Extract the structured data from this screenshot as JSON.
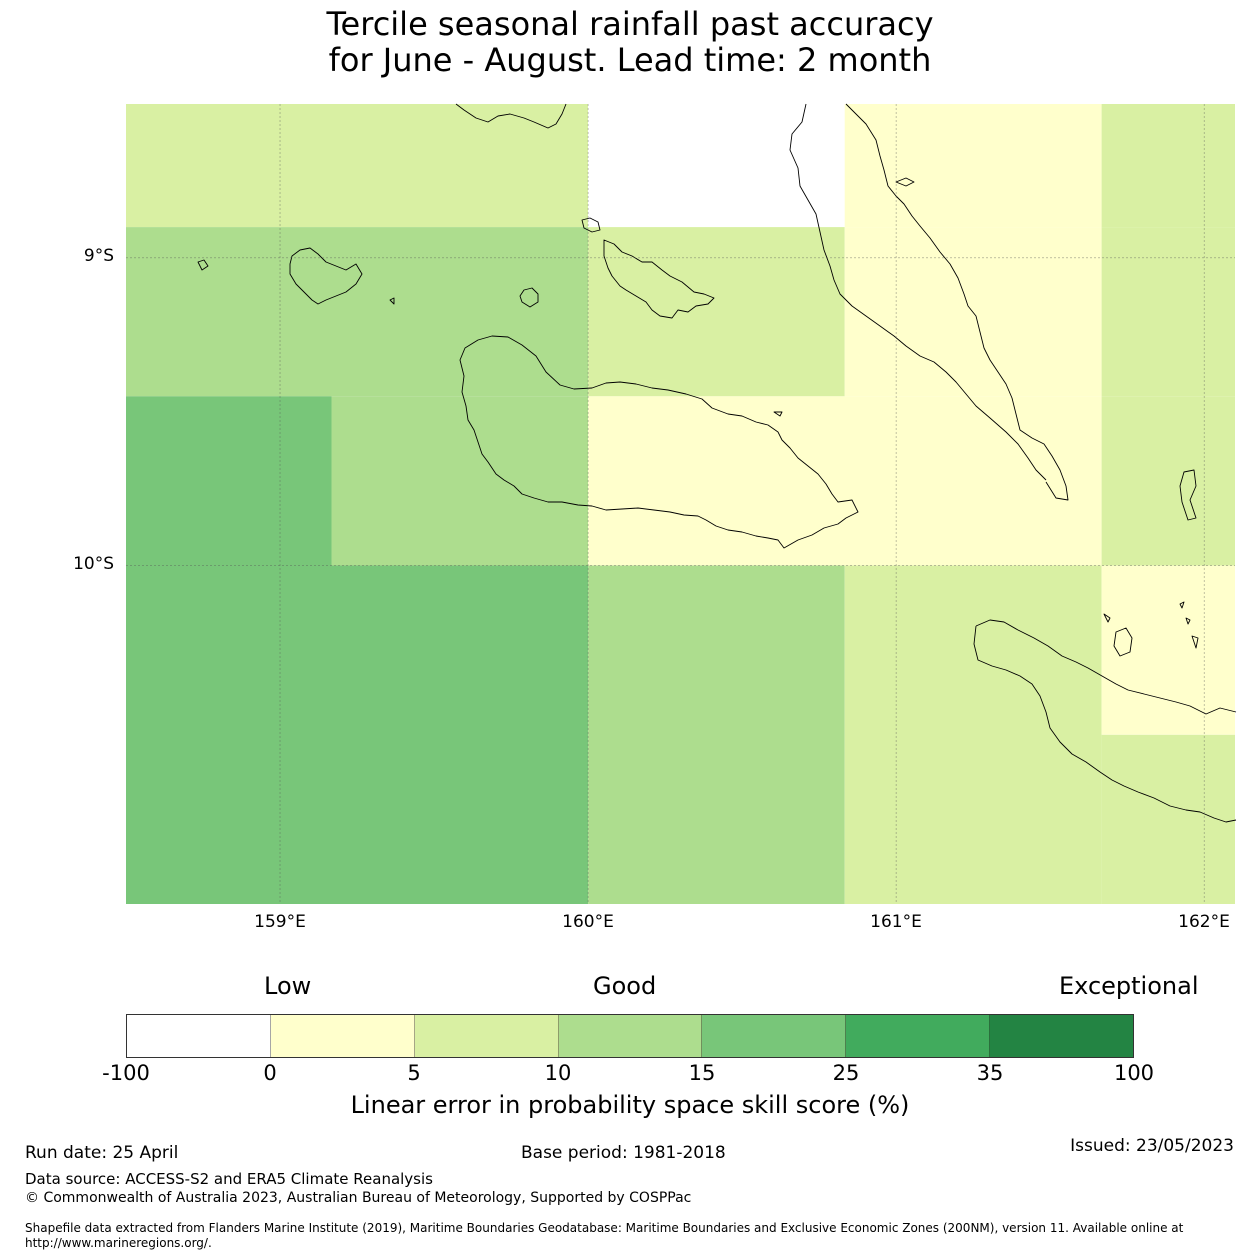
{
  "title_line1": "Tercile seasonal rainfall past accuracy",
  "title_line2": "for June - August. Lead time: 2 month",
  "colors": {
    "c0": "#ffffff",
    "c1": "#ffffcc",
    "c2": "#d9f0a3",
    "c3": "#addd8e",
    "c4": "#78c679",
    "c5": "#41ab5d",
    "c6": "#238443",
    "coast": "#000000",
    "grid": "#555555"
  },
  "map": {
    "lon_range": [
      158.5,
      162.1
    ],
    "lat_range": [
      -11.1,
      -8.5
    ],
    "lat_labels": [
      "9°S",
      "10°S"
    ],
    "lon_labels": [
      "159°E",
      "160°E",
      "161°E",
      "162°E"
    ],
    "cells": [
      {
        "lon": [
          158.5,
          160.0
        ],
        "lat": [
          -8.9,
          -8.5
        ],
        "category": 2
      },
      {
        "lon": [
          160.0,
          160.833
        ],
        "lat": [
          -8.9,
          -8.5
        ],
        "category": 0
      },
      {
        "lon": [
          160.833,
          161.667
        ],
        "lat": [
          -8.9,
          -8.5
        ],
        "category": 1
      },
      {
        "lon": [
          161.667,
          162.1
        ],
        "lat": [
          -8.9,
          -8.5
        ],
        "category": 2
      },
      {
        "lon": [
          158.5,
          160.0
        ],
        "lat": [
          -9.45,
          -8.9
        ],
        "category": 3
      },
      {
        "lon": [
          160.0,
          160.833
        ],
        "lat": [
          -9.45,
          -8.9
        ],
        "category": 2
      },
      {
        "lon": [
          160.833,
          161.667
        ],
        "lat": [
          -9.45,
          -8.9
        ],
        "category": 1
      },
      {
        "lon": [
          161.667,
          162.1
        ],
        "lat": [
          -9.45,
          -8.9
        ],
        "category": 2
      },
      {
        "lon": [
          158.5,
          159.167
        ],
        "lat": [
          -10.0,
          -9.45
        ],
        "category": 4
      },
      {
        "lon": [
          159.167,
          160.0
        ],
        "lat": [
          -10.0,
          -9.45
        ],
        "category": 3
      },
      {
        "lon": [
          160.0,
          161.667
        ],
        "lat": [
          -10.0,
          -9.45
        ],
        "category": 1
      },
      {
        "lon": [
          161.667,
          162.1
        ],
        "lat": [
          -10.0,
          -9.45
        ],
        "category": 2
      },
      {
        "lon": [
          158.5,
          160.0
        ],
        "lat": [
          -11.1,
          -10.0
        ],
        "category": 4
      },
      {
        "lon": [
          160.0,
          160.833
        ],
        "lat": [
          -11.1,
          -10.0
        ],
        "category": 3
      },
      {
        "lon": [
          160.833,
          161.667
        ],
        "lat": [
          -11.1,
          -10.0
        ],
        "category": 2
      },
      {
        "lon": [
          161.667,
          162.1
        ],
        "lat": [
          -10.55,
          -10.0
        ],
        "category": 1
      },
      {
        "lon": [
          161.667,
          162.1
        ],
        "lat": [
          -11.1,
          -10.55
        ],
        "category": 2
      }
    ]
  },
  "colorbar": {
    "categories": [
      "Low",
      "Good",
      "Exceptional"
    ],
    "ticks": [
      "-100",
      "0",
      "5",
      "10",
      "15",
      "25",
      "35",
      "100"
    ],
    "label": "Linear error in probability space skill score (%)"
  },
  "footer": {
    "run_date": "Run date: 25 April",
    "base_period": "Base period: 1981-2018",
    "issued": "Issued: 23/05/2023",
    "data_source": "Data source: ACCESS-S2 and ERA5 Climate Reanalysis",
    "copyright": "© Commonwealth of Australia 2023, Australian Bureau of Meteorology, Supported by COSPPac",
    "shapefile_line1": "Shapefile data extracted from Flanders Marine Institute (2019), Maritime Boundaries Geodatabase: Maritime Boundaries and Exclusive Economic Zones (200NM), version 11. Available online at",
    "shapefile_line2": "http://www.marineregions.org/."
  }
}
